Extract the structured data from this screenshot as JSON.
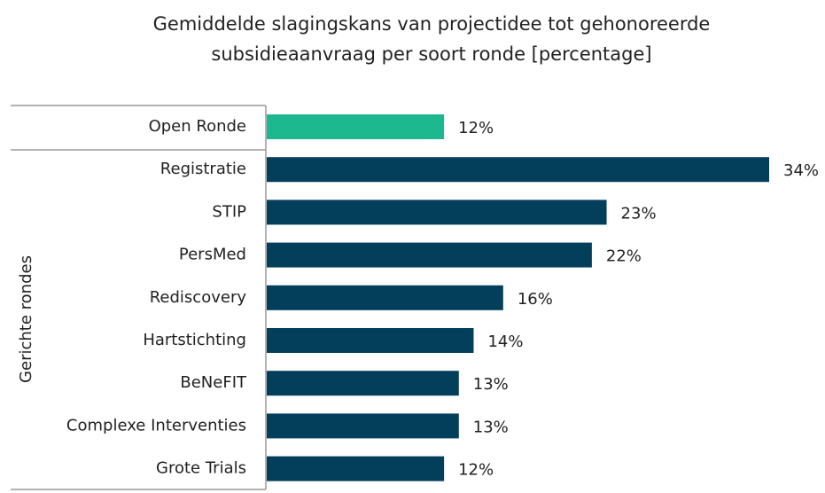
{
  "chart_data": {
    "type": "hbar",
    "title": "Gemiddelde slagingskans van projectidee tot gehonoreerde subsidieaanvraag per soort ronde [percentage]",
    "group_label": "Gerichte rondes",
    "categories": [
      "Open Ronde",
      "Registratie",
      "STIP",
      "PersMed",
      "Rediscovery",
      "Hartstichting",
      "BeNeFIT",
      "Complexe Interventies",
      "Grote Trials"
    ],
    "values": [
      12,
      34,
      23,
      22,
      16,
      14,
      13,
      13,
      12
    ],
    "value_labels": [
      "12%",
      "34%",
      "23%",
      "22%",
      "16%",
      "14%",
      "13%",
      "13%",
      "12%"
    ],
    "colors": [
      "#1db88e",
      "#033f5b",
      "#033f5b",
      "#033f5b",
      "#033f5b",
      "#033f5b",
      "#033f5b",
      "#033f5b",
      "#033f5b"
    ],
    "xlim": [
      0,
      34
    ]
  }
}
